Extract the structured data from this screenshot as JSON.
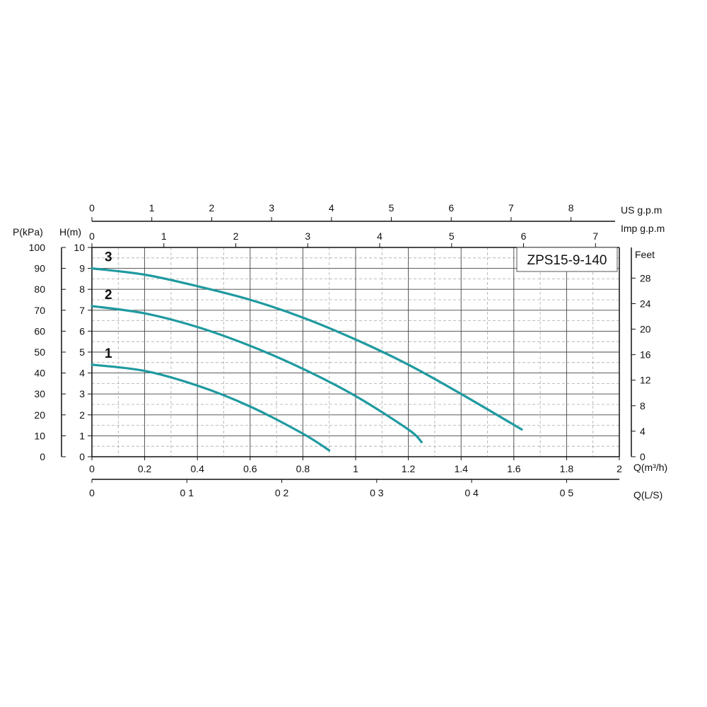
{
  "chart_data": {
    "type": "line",
    "title": "ZPS15-9-140",
    "xlabel": "Q(m³/h)",
    "ylabel": "H(m)",
    "xlim": [
      0,
      2
    ],
    "ylim": [
      0,
      10
    ],
    "x_ticks": [
      "0",
      "0.2",
      "0.4",
      "0.6",
      "0.8",
      "1",
      "1.2",
      "1.4",
      "1.6",
      "1.8",
      "2"
    ],
    "y_ticks": [
      "0",
      "1",
      "2",
      "3",
      "4",
      "5",
      "6",
      "7",
      "8",
      "9",
      "10"
    ],
    "grid": true,
    "series": [
      {
        "name": "1",
        "color": "#1f9aa0",
        "x": [
          0,
          0.2,
          0.4,
          0.6,
          0.8,
          0.9
        ],
        "y": [
          4.4,
          4.1,
          3.4,
          2.4,
          1.1,
          0.3
        ]
      },
      {
        "name": "2",
        "color": "#1f9aa0",
        "x": [
          0,
          0.2,
          0.4,
          0.6,
          0.8,
          1.0,
          1.2,
          1.25
        ],
        "y": [
          7.2,
          6.85,
          6.2,
          5.3,
          4.2,
          2.9,
          1.3,
          0.7
        ]
      },
      {
        "name": "3",
        "color": "#1f9aa0",
        "x": [
          0,
          0.2,
          0.4,
          0.6,
          0.8,
          1.0,
          1.2,
          1.4,
          1.63
        ],
        "y": [
          9.0,
          8.7,
          8.15,
          7.5,
          6.65,
          5.6,
          4.4,
          3.0,
          1.3
        ]
      }
    ],
    "secondary_axes": {
      "pressure": {
        "label": "P(kPa)",
        "ticks": [
          "0",
          "10",
          "20",
          "30",
          "40",
          "50",
          "60",
          "70",
          "80",
          "90",
          "100"
        ]
      },
      "feet": {
        "label": "Feet",
        "ticks": [
          "0",
          "4",
          "8",
          "12",
          "16",
          "20",
          "24",
          "28"
        ]
      },
      "us_gpm": {
        "label": "US  g.p.m",
        "ticks": [
          "0",
          "1",
          "2",
          "3",
          "4",
          "5",
          "6",
          "7",
          "8"
        ]
      },
      "imp_gpm": {
        "label": "Imp  g.p.m",
        "ticks": [
          "0",
          "1",
          "2",
          "3",
          "4",
          "5",
          "6",
          "7"
        ]
      },
      "ls": {
        "label": "Q(L/S)",
        "ticks": [
          "0",
          "0 1",
          "0 2",
          "0 3",
          "0 4",
          "0 5"
        ]
      }
    }
  }
}
